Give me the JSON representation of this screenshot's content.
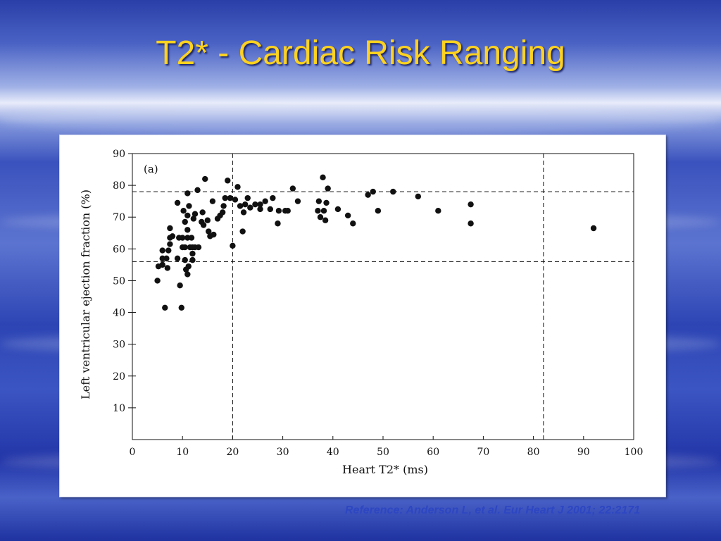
{
  "slide": {
    "title": "T2* - Cardiac Risk Ranging",
    "reference": "Reference: Anderson L, et al. Eur Heart J 2001; 22:2171"
  },
  "colors": {
    "title": "#ffd21f",
    "reference": "#2d46c2",
    "points": "#111111"
  },
  "chart_data": {
    "type": "scatter",
    "panel_label": "(a)",
    "xlabel": "Heart T2* (ms)",
    "ylabel": "Left ventricular ejection fraction (%)",
    "xlim": [
      0,
      100
    ],
    "ylim": [
      0,
      90
    ],
    "xticks": [
      0,
      10,
      20,
      30,
      40,
      50,
      60,
      70,
      80,
      90,
      100
    ],
    "yticks": [
      10,
      20,
      30,
      40,
      50,
      60,
      70,
      80,
      90
    ],
    "grid": false,
    "reference_lines": [
      {
        "orientation": "vertical",
        "value": 20
      },
      {
        "orientation": "vertical",
        "value": 82
      },
      {
        "orientation": "horizontal",
        "value": 78
      },
      {
        "orientation": "horizontal",
        "value": 56
      }
    ],
    "points": [
      [
        5,
        50
      ],
      [
        5.2,
        54.5
      ],
      [
        6,
        55
      ],
      [
        6,
        57
      ],
      [
        6,
        59.5
      ],
      [
        6.5,
        41.5
      ],
      [
        6.8,
        57
      ],
      [
        7,
        54
      ],
      [
        7.2,
        59.5
      ],
      [
        7.5,
        61.5
      ],
      [
        7.5,
        63.5
      ],
      [
        7.5,
        66.5
      ],
      [
        8,
        64
      ],
      [
        9,
        74.5
      ],
      [
        9,
        57
      ],
      [
        9.3,
        63.5
      ],
      [
        9.5,
        48.5
      ],
      [
        9.8,
        41.5
      ],
      [
        10,
        60.5
      ],
      [
        10,
        63.5
      ],
      [
        10.2,
        72
      ],
      [
        10.5,
        56.5
      ],
      [
        10.5,
        68.5
      ],
      [
        10.5,
        60.5
      ],
      [
        10.7,
        53.5
      ],
      [
        11,
        77.5
      ],
      [
        11,
        70.5
      ],
      [
        11,
        66
      ],
      [
        11,
        63.5
      ],
      [
        11,
        52
      ],
      [
        11.2,
        54.5
      ],
      [
        11.3,
        73.5
      ],
      [
        11.5,
        60.5
      ],
      [
        11.8,
        63.5
      ],
      [
        12,
        58.5
      ],
      [
        12,
        56.5
      ],
      [
        12,
        60.5
      ],
      [
        12.2,
        69.5
      ],
      [
        12.5,
        71
      ],
      [
        12.5,
        60.5
      ],
      [
        13,
        78.5
      ],
      [
        13.2,
        60.5
      ],
      [
        13.8,
        68.5
      ],
      [
        14,
        71.5
      ],
      [
        14.2,
        67.5
      ],
      [
        14.5,
        82
      ],
      [
        15,
        69
      ],
      [
        15.2,
        65.5
      ],
      [
        15.5,
        64
      ],
      [
        16,
        75
      ],
      [
        16.2,
        64.5
      ],
      [
        17,
        69.5
      ],
      [
        17.5,
        70.5
      ],
      [
        18,
        71.5
      ],
      [
        18.2,
        73.5
      ],
      [
        18.5,
        76
      ],
      [
        19,
        81.5
      ],
      [
        19.5,
        76
      ],
      [
        20,
        61
      ],
      [
        20.5,
        75.5
      ],
      [
        21,
        79.5
      ],
      [
        21.5,
        73.5
      ],
      [
        22,
        65.5
      ],
      [
        22.2,
        71.5
      ],
      [
        22.5,
        74
      ],
      [
        23,
        76
      ],
      [
        23.5,
        73
      ],
      [
        24.5,
        74
      ],
      [
        25.5,
        72.5
      ],
      [
        25.5,
        74
      ],
      [
        26.5,
        75
      ],
      [
        27.5,
        72.5
      ],
      [
        28,
        76
      ],
      [
        29,
        68
      ],
      [
        29.2,
        72
      ],
      [
        30.5,
        72
      ],
      [
        31,
        72
      ],
      [
        32,
        79
      ],
      [
        33,
        75
      ],
      [
        37,
        72
      ],
      [
        37.2,
        75
      ],
      [
        37.5,
        70
      ],
      [
        38,
        82.5
      ],
      [
        38.2,
        72
      ],
      [
        38.5,
        69
      ],
      [
        38.7,
        74.5
      ],
      [
        39,
        79
      ],
      [
        41,
        72.5
      ],
      [
        43,
        70.5
      ],
      [
        44,
        68
      ],
      [
        47,
        77
      ],
      [
        48,
        78
      ],
      [
        49,
        72
      ],
      [
        52,
        78
      ],
      [
        57,
        76.5
      ],
      [
        61,
        72
      ],
      [
        67.5,
        74
      ],
      [
        67.5,
        68
      ],
      [
        92,
        66.5
      ]
    ]
  }
}
